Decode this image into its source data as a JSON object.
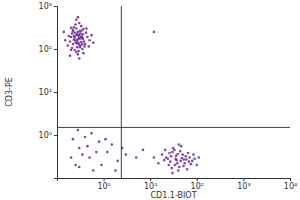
{
  "chart_data": {
    "type": "scatter",
    "xlabel": "CD1.1-BIOT",
    "ylabel": "CD3-PE",
    "log": true,
    "grid": false,
    "color": "#6b2a8f",
    "marker": "circle",
    "xlim": [
      0.1,
      10000
    ],
    "ylim": [
      0.1,
      1000
    ],
    "xticks": [
      {
        "value": 1,
        "label": "10⁰"
      },
      {
        "value": 10,
        "label": "10¹"
      },
      {
        "value": 100,
        "label": "10²"
      },
      {
        "value": 1000,
        "label": "10³"
      },
      {
        "value": 10000,
        "label": "10⁴"
      }
    ],
    "yticks": [
      {
        "value": 1,
        "label": "10⁰"
      },
      {
        "value": 10,
        "label": "10¹"
      },
      {
        "value": 100,
        "label": "10²"
      },
      {
        "value": 1000,
        "label": "10³"
      }
    ],
    "quadrant": {
      "x": 2.4,
      "y": 1.5
    },
    "x": [
      0.25,
      0.3,
      0.22,
      0.35,
      0.28,
      0.2,
      0.32,
      0.26,
      0.38,
      0.24,
      0.29,
      0.21,
      0.34,
      0.27,
      0.31,
      0.23,
      0.36,
      0.19,
      0.4,
      0.33,
      0.26,
      0.3,
      0.22,
      0.45,
      0.17,
      0.28,
      0.35,
      0.24,
      0.31,
      0.27,
      0.5,
      0.2,
      0.29,
      0.37,
      0.23,
      0.26,
      0.33,
      0.21,
      0.42,
      0.3,
      0.25,
      0.18,
      0.34,
      0.28,
      0.39,
      0.24,
      0.32,
      0.27,
      0.22,
      0.36,
      0.15,
      0.55,
      0.3,
      0.26,
      0.2,
      0.43,
      0.29,
      0.35,
      0.25,
      0.31,
      0.6,
      0.14,
      0.28,
      0.37,
      0.23,
      0.48,
      0.19,
      0.33,
      0.27,
      0.3,
      35,
      28,
      45,
      22,
      60,
      38,
      30,
      50,
      25,
      70,
      42,
      33,
      55,
      20,
      80,
      36,
      48,
      27,
      65,
      40,
      31,
      90,
      18,
      52,
      44,
      24,
      75,
      37,
      58,
      29,
      110,
      15,
      46,
      39,
      62,
      26,
      34,
      85,
      21,
      53,
      12,
      100,
      41,
      30,
      68,
      0.3,
      0.5,
      0.8,
      0.25,
      1.2,
      0.4,
      2,
      0.6,
      0.35,
      1.5,
      0.22,
      0.9,
      3,
      0.45,
      0.7,
      0.2,
      1.1,
      2.5,
      0.55,
      0.3,
      5,
      7,
      0.28,
      1.8,
      12
    ],
    "values": [
      160,
      210,
      130,
      180,
      250,
      190,
      120,
      300,
      150,
      95,
      140,
      230,
      270,
      110,
      175,
      200,
      220,
      150,
      130,
      340,
      85,
      400,
      280,
      190,
      120,
      170,
      100,
      240,
      260,
      135,
      160,
      310,
      90,
      290,
      165,
      210,
      145,
      105,
      240,
      125,
      370,
      200,
      195,
      75,
      115,
      185,
      230,
      155,
      260,
      170,
      160,
      210,
      60,
      480,
      95,
      300,
      205,
      130,
      140,
      110,
      140,
      250,
      550,
      80,
      320,
      115,
      70,
      190,
      225,
      180,
      0.28,
      0.32,
      0.25,
      0.3,
      0.27,
      0.22,
      0.4,
      0.35,
      0.2,
      0.3,
      0.18,
      0.45,
      0.22,
      0.26,
      0.25,
      0.33,
      0.29,
      0.24,
      0.38,
      0.15,
      0.5,
      0.28,
      0.35,
      0.19,
      0.42,
      0.28,
      0.21,
      0.26,
      0.32,
      0.17,
      0.3,
      0.22,
      0.55,
      0.36,
      0.16,
      0.38,
      0.2,
      0.35,
      0.45,
      0.27,
      0.3,
      0.2,
      0.6,
      0.13,
      0.24,
      0.5,
      0.3,
      0.7,
      0.2,
      0.4,
      0.9,
      0.25,
      0.15,
      0.35,
      0.6,
      0.8,
      0.2,
      0.35,
      0.55,
      0.4,
      0.3,
      0.8,
      0.5,
      1.1,
      0.18,
      0.3,
      0.45,
      1.3,
      0.15,
      250
    ]
  }
}
